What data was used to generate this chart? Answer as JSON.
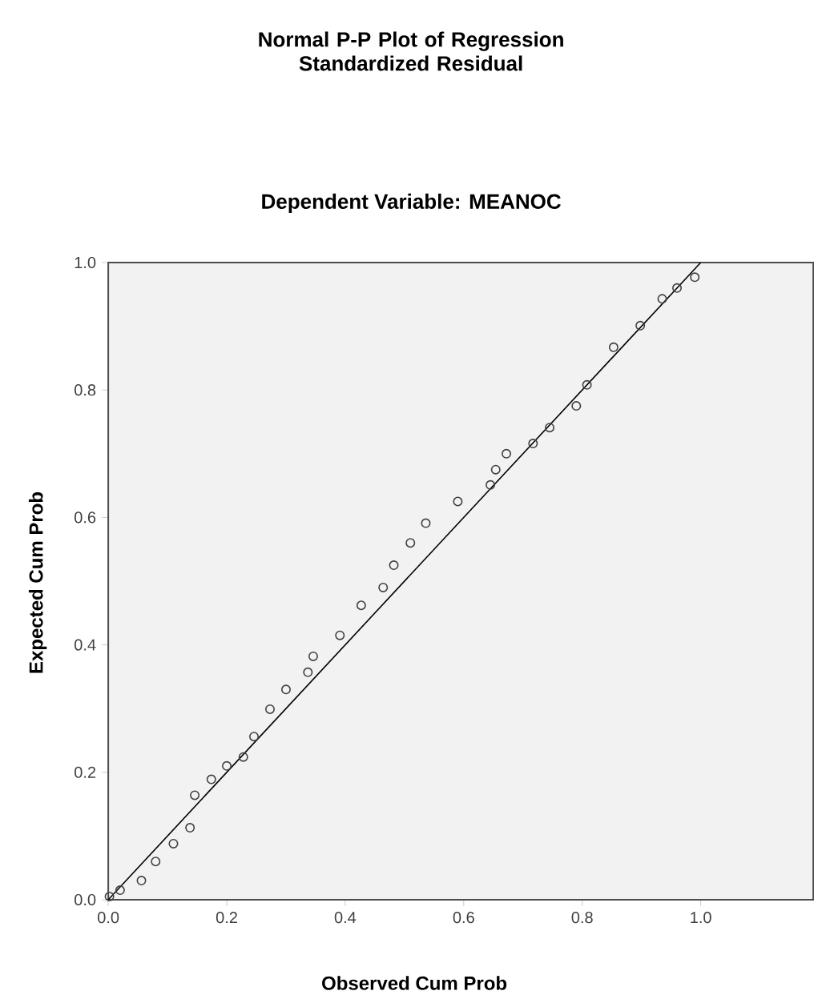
{
  "chart_data": {
    "type": "scatter",
    "title": "Normal P-P Plot of Regression Standardized Residual",
    "subtitle": "Dependent Variable: MEANOC",
    "xlabel": "Observed Cum Prob",
    "ylabel": "Expected Cum Prob",
    "xlim": [
      0,
      1.19
    ],
    "ylim": [
      0,
      1
    ],
    "xticks": [
      {
        "value": 0,
        "label": "0.0"
      },
      {
        "value": 0.2,
        "label": "0.2"
      },
      {
        "value": 0.4,
        "label": "0.4"
      },
      {
        "value": 0.6,
        "label": "0.6"
      },
      {
        "value": 0.8,
        "label": "0.8"
      },
      {
        "value": 1,
        "label": "1.0"
      }
    ],
    "yticks": [
      {
        "value": 0,
        "label": "0.0"
      },
      {
        "value": 0.2,
        "label": "0.2"
      },
      {
        "value": 0.4,
        "label": "0.4"
      },
      {
        "value": 0.6,
        "label": "0.6"
      },
      {
        "value": 0.8,
        "label": "0.8"
      },
      {
        "value": 1,
        "label": "1.0"
      }
    ],
    "grid": false,
    "series": [
      {
        "marker": "circle",
        "color": "#404040",
        "x": [
          0.002,
          0.02,
          0.056,
          0.08,
          0.11,
          0.138,
          0.146,
          0.174,
          0.2,
          0.228,
          0.246,
          0.273,
          0.3,
          0.337,
          0.346,
          0.391,
          0.427,
          0.464,
          0.482,
          0.51,
          0.536,
          0.59,
          0.645,
          0.654,
          0.672,
          0.717,
          0.745,
          0.79,
          0.808,
          0.853,
          0.898,
          0.935,
          0.96,
          0.99
        ],
        "values": [
          0.005,
          0.015,
          0.03,
          0.06,
          0.088,
          0.113,
          0.164,
          0.189,
          0.21,
          0.224,
          0.256,
          0.299,
          0.33,
          0.357,
          0.382,
          0.415,
          0.462,
          0.49,
          0.525,
          0.56,
          0.591,
          0.625,
          0.651,
          0.675,
          0.7,
          0.716,
          0.741,
          0.775,
          0.808,
          0.867,
          0.901,
          0.943,
          0.96,
          0.977
        ]
      },
      {
        "type": "line",
        "marker": "none",
        "color": "#000000",
        "x": [
          0,
          1
        ],
        "values": [
          0,
          1
        ]
      }
    ]
  }
}
